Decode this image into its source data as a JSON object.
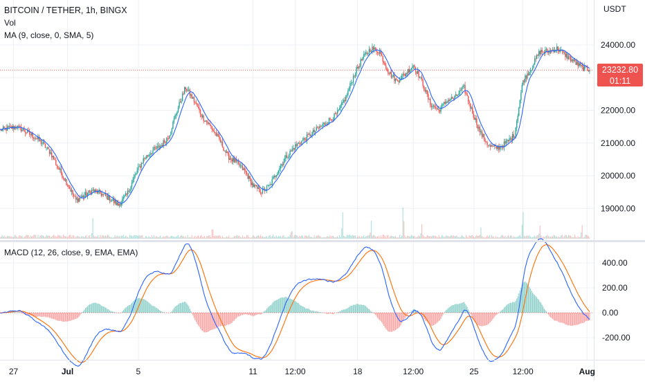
{
  "header": {
    "title": "BITCOIN / TETHER, 1h, BINGX",
    "vol_label": "Vol",
    "ma_label": "MA (9, close, 0, SMA, 5)",
    "macd_label": "MACD (12, 26, close, 9, EMA, EMA)",
    "quote_unit": "USDT"
  },
  "last_price": {
    "value": "23232.80",
    "countdown": "01:11",
    "color": "#ef5350"
  },
  "colors": {
    "up": "#26a69a",
    "down": "#ef5350",
    "ma": "#2962ff",
    "macd": "#2962ff",
    "signal": "#ff6d00",
    "grid": "#eef0f3"
  },
  "chart_data": [
    {
      "type": "candlestick",
      "title": "BITCOIN / TETHER, 1h, BINGX",
      "ylabel": "USDT",
      "ylim": [
        18200,
        24900
      ],
      "yticks": [
        "24000.00",
        "23000.00",
        "22000.00",
        "21000.00",
        "20000.00",
        "19000.00"
      ],
      "ytick_values": [
        24000,
        23000,
        22000,
        21000,
        20000,
        19000
      ],
      "xticks": [
        "27",
        "Jul",
        "5",
        "11",
        "12:00",
        "18",
        "12:00",
        "25",
        "12:00",
        "Aug"
      ],
      "xtick_positions": [
        0.8,
        4,
        8.2,
        15,
        17.5,
        21.2,
        24.5,
        28.1,
        31,
        34.8
      ],
      "x_range": [
        0,
        35.2
      ],
      "close_series": {
        "x": [
          0,
          0.5,
          1,
          1.5,
          2,
          2.5,
          3,
          3.5,
          4,
          4.5,
          5,
          5.5,
          6,
          6.5,
          7,
          7.5,
          8,
          8.5,
          9,
          9.5,
          10,
          10.5,
          11,
          11.5,
          12,
          12.5,
          13,
          13.5,
          14,
          14.5,
          15,
          15.5,
          16,
          16.5,
          17,
          17.5,
          18,
          18.5,
          19,
          19.5,
          20,
          20.5,
          21,
          21.5,
          22,
          22.5,
          23,
          23.5,
          24,
          24.5,
          25,
          25.5,
          26,
          26.5,
          27,
          27.5,
          28,
          28.5,
          29,
          29.5,
          30,
          30.5,
          31,
          31.5,
          32,
          32.5,
          33,
          33.5,
          34,
          34.5,
          35
        ],
        "values": [
          21400,
          21450,
          21500,
          21350,
          21200,
          21000,
          20700,
          20200,
          19750,
          19250,
          19400,
          19550,
          19450,
          19300,
          19100,
          19400,
          20000,
          20500,
          20750,
          20900,
          21200,
          22000,
          22700,
          22300,
          21800,
          21500,
          21100,
          20600,
          20400,
          20150,
          19700,
          19500,
          19700,
          20200,
          20600,
          20900,
          21100,
          21300,
          21500,
          21700,
          21900,
          22400,
          23100,
          23600,
          23900,
          23800,
          23200,
          22900,
          23100,
          23400,
          22900,
          22200,
          22000,
          22300,
          22400,
          22700,
          21950,
          21300,
          20900,
          20850,
          21000,
          21250,
          22900,
          23300,
          23800,
          23800,
          23900,
          23700,
          23500,
          23300,
          23233
        ]
      },
      "volume_max": 18500,
      "volume_spikes": [
        {
          "x": 5.5,
          "v": 7000
        },
        {
          "x": 12.6,
          "v": 6500
        },
        {
          "x": 17.3,
          "v": 4500
        },
        {
          "x": 20.3,
          "v": 11000
        },
        {
          "x": 22.0,
          "v": 8000
        },
        {
          "x": 23.9,
          "v": 14000
        },
        {
          "x": 25.0,
          "v": 6000
        },
        {
          "x": 28.5,
          "v": 5000
        },
        {
          "x": 31.0,
          "v": 12000
        },
        {
          "x": 32.0,
          "v": 5000
        },
        {
          "x": 34.5,
          "v": 6500
        }
      ]
    },
    {
      "type": "line",
      "title": "MACD (12, 26, close, 9, EMA, EMA)",
      "ylim": [
        -340,
        490
      ],
      "yticks": [
        "400.00",
        "200.00",
        "0.00",
        "-200.00"
      ],
      "ytick_values": [
        400,
        200,
        0,
        -200
      ]
    }
  ]
}
